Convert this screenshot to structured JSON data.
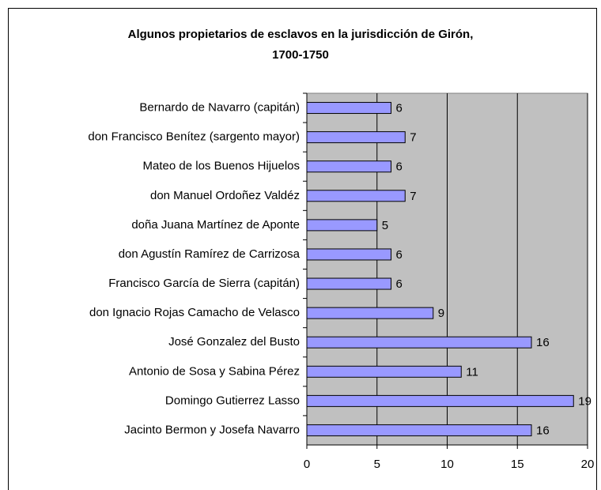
{
  "chart_data": {
    "type": "barh",
    "title": [
      "Algunos propietarios de esclavos en la jurisdicción de Girón,",
      "1700-1750"
    ],
    "categories": [
      "Bernardo de Navarro (capitán)",
      "don Francisco Benítez (sargento mayor)",
      "Mateo de los Buenos Hijuelos",
      "don Manuel Ordoñez Valdéz",
      "doña Juana Martínez de Aponte",
      "don Agustín Ramírez de Carrizosa",
      "Francisco García de Sierra (capitán)",
      "don Ignacio Rojas Camacho de Velasco",
      "José Gonzalez del Busto",
      "Antonio de Sosa y Sabina Pérez",
      "Domingo Gutierrez Lasso",
      "Jacinto Bermon y Josefa Navarro"
    ],
    "values": [
      6,
      7,
      6,
      7,
      5,
      6,
      6,
      9,
      16,
      11,
      19,
      16
    ],
    "color": "#9999ff",
    "plot_background": "#c0c0c0",
    "xlim": [
      0,
      20
    ],
    "xticks": [
      0,
      5,
      10,
      15,
      20
    ],
    "grid": true
  }
}
